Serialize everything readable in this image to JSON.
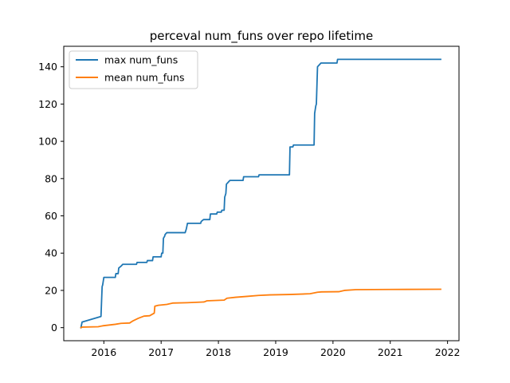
{
  "chart_data": {
    "type": "line",
    "title": "perceval num_funs over repo lifetime",
    "xlabel": "",
    "ylabel": "",
    "xlim": [
      2015.3,
      2022.2
    ],
    "ylim": [
      -7,
      151
    ],
    "x_ticks": [
      2016,
      2017,
      2018,
      2019,
      2020,
      2021,
      2022
    ],
    "x_tick_labels": [
      "2016",
      "2017",
      "2018",
      "2019",
      "2020",
      "2021",
      "2022"
    ],
    "y_ticks": [
      0,
      20,
      40,
      60,
      80,
      100,
      120,
      140
    ],
    "y_tick_labels": [
      "0",
      "20",
      "40",
      "60",
      "80",
      "100",
      "120",
      "140"
    ],
    "legend_position": "top-left",
    "grid": false,
    "series": [
      {
        "name": "max num_funs",
        "color": "#1f77b4",
        "points": [
          [
            2015.6,
            0
          ],
          [
            2015.62,
            3
          ],
          [
            2015.95,
            6
          ],
          [
            2015.96,
            14
          ],
          [
            2015.97,
            22
          ],
          [
            2015.98,
            23
          ],
          [
            2016.0,
            27
          ],
          [
            2016.2,
            27
          ],
          [
            2016.21,
            29
          ],
          [
            2016.25,
            29
          ],
          [
            2016.26,
            32
          ],
          [
            2016.3,
            33
          ],
          [
            2016.33,
            34
          ],
          [
            2016.57,
            34
          ],
          [
            2016.58,
            35
          ],
          [
            2016.75,
            35
          ],
          [
            2016.76,
            36
          ],
          [
            2016.85,
            36
          ],
          [
            2016.86,
            38
          ],
          [
            2017.0,
            38
          ],
          [
            2017.01,
            40
          ],
          [
            2017.03,
            40
          ],
          [
            2017.04,
            48
          ],
          [
            2017.06,
            49
          ],
          [
            2017.07,
            50
          ],
          [
            2017.1,
            51
          ],
          [
            2017.42,
            51
          ],
          [
            2017.44,
            53
          ],
          [
            2017.46,
            56
          ],
          [
            2017.69,
            56
          ],
          [
            2017.7,
            57
          ],
          [
            2017.74,
            58
          ],
          [
            2017.85,
            58
          ],
          [
            2017.86,
            61
          ],
          [
            2017.97,
            61
          ],
          [
            2017.98,
            62
          ],
          [
            2018.05,
            62
          ],
          [
            2018.06,
            63
          ],
          [
            2018.1,
            63
          ],
          [
            2018.11,
            70
          ],
          [
            2018.13,
            72
          ],
          [
            2018.14,
            77
          ],
          [
            2018.17,
            78
          ],
          [
            2018.2,
            79
          ],
          [
            2018.43,
            79
          ],
          [
            2018.44,
            81
          ],
          [
            2018.7,
            81
          ],
          [
            2018.71,
            82
          ],
          [
            2019.24,
            82
          ],
          [
            2019.25,
            97
          ],
          [
            2019.3,
            97
          ],
          [
            2019.31,
            98
          ],
          [
            2019.67,
            98
          ],
          [
            2019.68,
            115
          ],
          [
            2019.7,
            119
          ],
          [
            2019.71,
            120
          ],
          [
            2019.73,
            140
          ],
          [
            2019.76,
            141
          ],
          [
            2019.79,
            142
          ],
          [
            2020.07,
            142
          ],
          [
            2020.08,
            144
          ],
          [
            2021.88,
            144
          ]
        ]
      },
      {
        "name": "mean num_funs",
        "color": "#ff7f0e",
        "points": [
          [
            2015.6,
            0
          ],
          [
            2015.62,
            0.3
          ],
          [
            2015.9,
            0.5
          ],
          [
            2015.98,
            1
          ],
          [
            2016.2,
            1.8
          ],
          [
            2016.3,
            2.3
          ],
          [
            2016.45,
            2.5
          ],
          [
            2016.5,
            3.5
          ],
          [
            2016.6,
            5
          ],
          [
            2016.7,
            6.2
          ],
          [
            2016.8,
            6.4
          ],
          [
            2016.88,
            7.8
          ],
          [
            2016.89,
            11.5
          ],
          [
            2016.95,
            12
          ],
          [
            2017.1,
            12.5
          ],
          [
            2017.2,
            13.2
          ],
          [
            2017.45,
            13.4
          ],
          [
            2017.75,
            13.8
          ],
          [
            2017.8,
            14.4
          ],
          [
            2018.1,
            14.8
          ],
          [
            2018.15,
            15.8
          ],
          [
            2018.3,
            16.3
          ],
          [
            2018.5,
            16.8
          ],
          [
            2018.7,
            17.3
          ],
          [
            2018.9,
            17.6
          ],
          [
            2019.25,
            17.8
          ],
          [
            2019.6,
            18.2
          ],
          [
            2019.73,
            19.0
          ],
          [
            2019.8,
            19.2
          ],
          [
            2020.1,
            19.3
          ],
          [
            2020.2,
            20
          ],
          [
            2020.4,
            20.4
          ],
          [
            2021.0,
            20.5
          ],
          [
            2021.88,
            20.6
          ]
        ]
      }
    ]
  }
}
